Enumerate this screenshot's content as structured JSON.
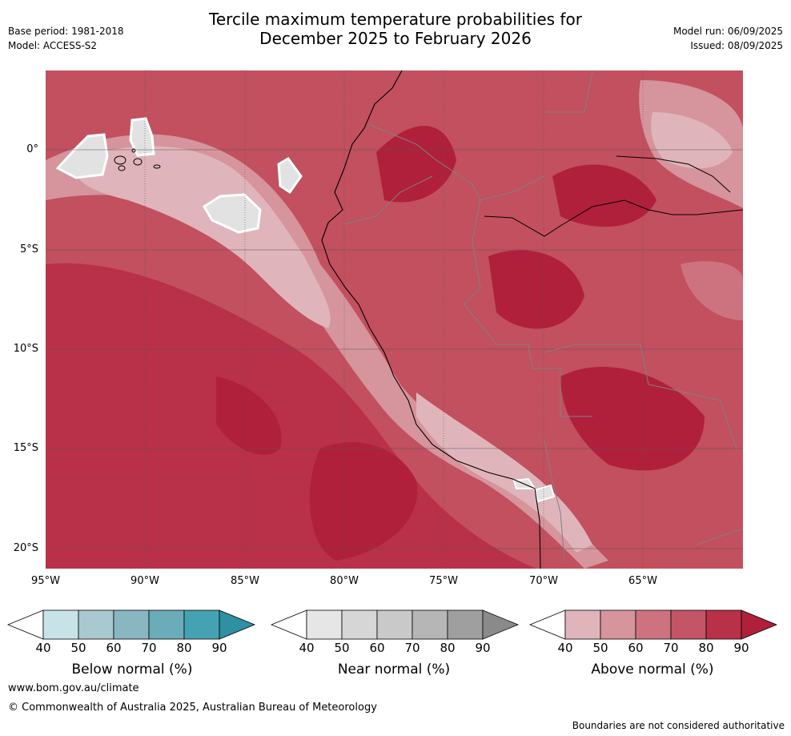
{
  "header": {
    "title_line1": "Tercile maximum temperature probabilities for",
    "title_line2": "December 2025 to February 2026",
    "base_period": "Base period: 1981-2018",
    "model": "Model: ACCESS-S2",
    "model_run": "Model run: 06/09/2025",
    "issued": "Issued: 08/09/2025"
  },
  "map": {
    "latitude_labels": [
      "0°",
      "5°S",
      "10°S",
      "15°S",
      "20°S"
    ],
    "longitude_labels": [
      "95°W",
      "90°W",
      "85°W",
      "80°W",
      "75°W",
      "70°W",
      "65°W"
    ],
    "ocean_color": "#c2505e",
    "land_color": "#c0404f"
  },
  "colorbars": [
    {
      "name": "below",
      "title": "Below normal (%)",
      "ticks": [
        "40",
        "50",
        "60",
        "70",
        "80",
        "90"
      ],
      "colors": [
        "#c8e3e8",
        "#a7c9cf",
        "#88b7c1",
        "#6aacb7",
        "#45a2b2",
        "#2f8fa3"
      ]
    },
    {
      "name": "near",
      "title": "Near normal (%)",
      "ticks": [
        "40",
        "50",
        "60",
        "70",
        "80",
        "90"
      ],
      "colors": [
        "#e6e6e6",
        "#d6d6d6",
        "#c9c9c9",
        "#b6b6b6",
        "#9f9f9f",
        "#8a8a8a"
      ]
    },
    {
      "name": "above",
      "title": "Above normal (%)",
      "ticks": [
        "40",
        "50",
        "60",
        "70",
        "80",
        "90"
      ],
      "colors": [
        "#dfb5bb",
        "#d6949c",
        "#cd7380",
        "#c45566",
        "#b93049",
        "#b0203b"
      ]
    }
  ],
  "footer": {
    "website": "www.bom.gov.au/climate",
    "copyright": "© Commonwealth of Australia 2025, Australian Bureau of Meteorology",
    "disclaimer": "Boundaries are not considered authoritative"
  }
}
